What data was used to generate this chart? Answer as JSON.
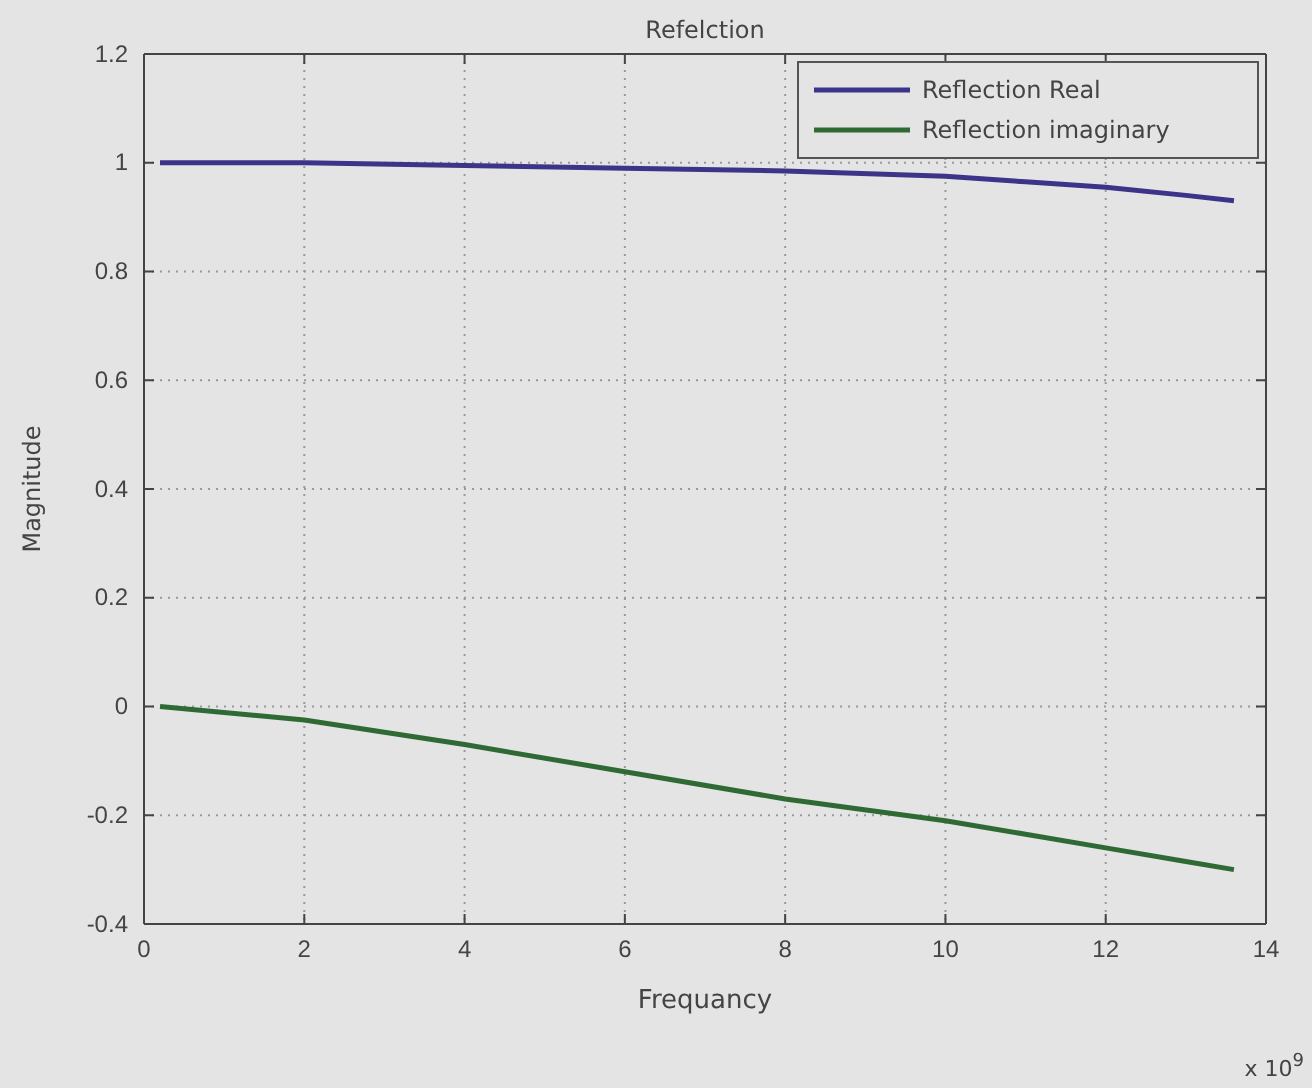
{
  "chart_data": {
    "type": "line",
    "title": "Refelction",
    "xlabel": "Frequancy",
    "ylabel": "Magnitude",
    "annotations": [
      "x 10$^{9}$"
    ],
    "x": [
      0.2,
      2,
      4,
      6,
      8,
      10,
      11,
      12,
      13,
      13.6
    ],
    "series": [
      {
        "name": "Reflection Real",
        "color": "#3b3488",
        "values": [
          1.0,
          1.0,
          0.995,
          0.99,
          0.985,
          0.975,
          0.965,
          0.955,
          0.94,
          0.93
        ]
      },
      {
        "name": "Reflection imaginary",
        "color": "#2f6a35",
        "values": [
          0.0,
          -0.025,
          -0.07,
          -0.12,
          -0.17,
          -0.21,
          -0.235,
          -0.26,
          -0.285,
          -0.3
        ]
      }
    ],
    "xlim": [
      0,
      14
    ],
    "xticks": [
      0,
      2,
      4,
      6,
      8,
      10,
      12,
      14
    ],
    "ylim": [
      -0.4,
      1.2
    ],
    "yticks": [
      -0.4,
      -0.2,
      0,
      0.2,
      0.4,
      0.6,
      0.8,
      1,
      1.2
    ],
    "grid": true,
    "legend": "top right",
    "marker": "none",
    "line_style": "solid"
  }
}
